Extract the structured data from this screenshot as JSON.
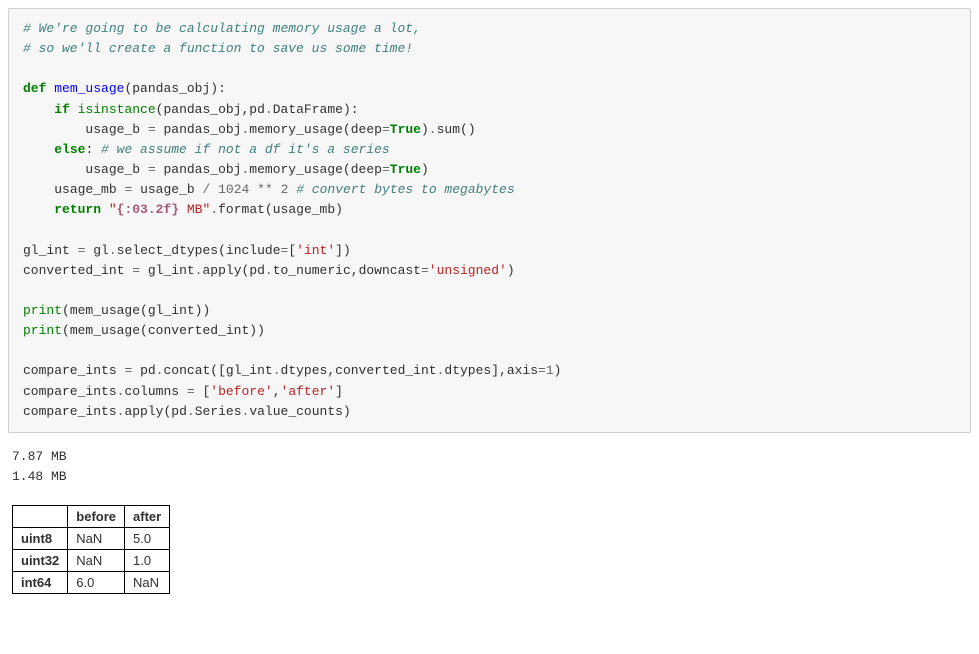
{
  "code": {
    "comment1": "# We're going to be calculating memory usage a lot,",
    "comment2": "# so we'll create a function to save us some time!",
    "kw_def": "def",
    "fn_name": "mem_usage",
    "param": "pandas_obj",
    "kw_if": "if",
    "fn_isinstance": "isinstance",
    "arg_pandas_obj": "pandas_obj",
    "pd": "pd",
    "DataFrame": "DataFrame",
    "usage_b": "usage_b",
    "memory_usage": "memory_usage",
    "deep": "deep",
    "True": "True",
    "sum": "sum",
    "kw_else": "else",
    "comment_else": "# we assume if not a df it's a series",
    "usage_mb": "usage_mb",
    "num_1024": "1024",
    "num_2": "2",
    "comment_bytes": "# convert bytes to megabytes",
    "kw_return": "return",
    "fmt_open": "\"",
    "fmt_spec": "{:03.2f}",
    "fmt_rest": " MB\"",
    "format": "format",
    "gl_int": "gl_int",
    "gl": "gl",
    "select_dtypes": "select_dtypes",
    "include": "include",
    "str_int": "'int'",
    "converted_int": "converted_int",
    "apply": "apply",
    "to_numeric": "to_numeric",
    "downcast": "downcast",
    "str_unsigned": "'unsigned'",
    "print": "print",
    "compare_ints": "compare_ints",
    "concat": "concat",
    "dtypes": "dtypes",
    "axis": "axis",
    "num_1": "1",
    "columns": "columns",
    "str_before": "'before'",
    "str_after": "'after'",
    "Series": "Series",
    "value_counts": "value_counts"
  },
  "output": {
    "line1": "7.87 MB",
    "line2": "1.48 MB"
  },
  "table": {
    "corner": "",
    "col1": "before",
    "col2": "after",
    "r1h": "uint8",
    "r1c1": "NaN",
    "r1c2": "5.0",
    "r2h": "uint32",
    "r2c1": "NaN",
    "r2c2": "1.0",
    "r3h": "int64",
    "r3c1": "6.0",
    "r3c2": "NaN"
  }
}
